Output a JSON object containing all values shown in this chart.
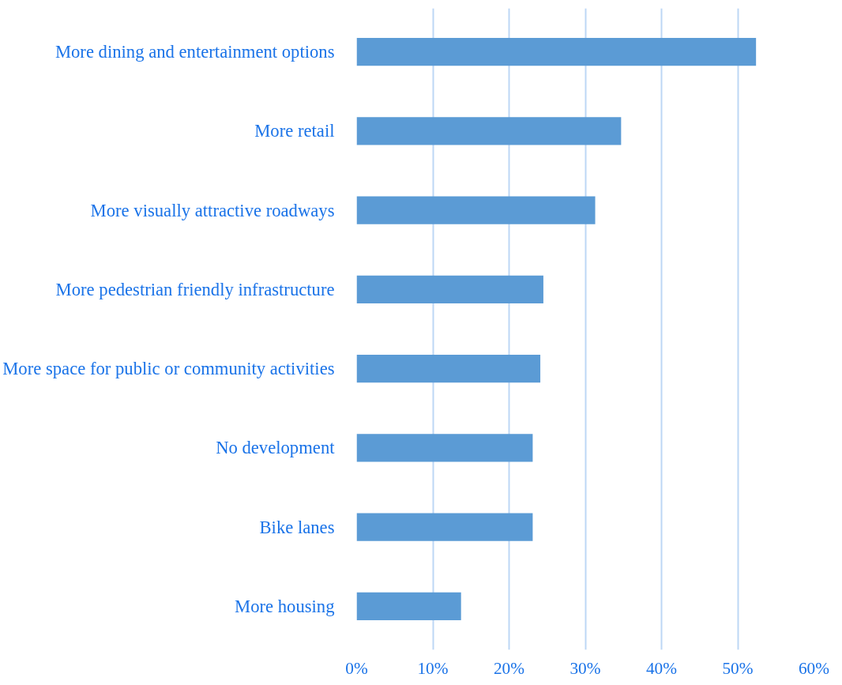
{
  "chart_data": {
    "type": "bar",
    "orientation": "horizontal",
    "categories": [
      "More dining and entertainment options",
      "More retail",
      "More visually attractive roadways",
      "More pedestrian friendly infrastructure",
      "More space for public or community activities",
      "No development",
      "Bike lanes",
      "More housing"
    ],
    "values": [
      52.4,
      34.7,
      31.3,
      24.5,
      24.1,
      23.1,
      23.1,
      13.7
    ],
    "color": "#5b9bd5",
    "xlim": [
      0,
      60
    ],
    "xticks": [
      {
        "value": 0,
        "label": "0%"
      },
      {
        "value": 10,
        "label": "10%"
      },
      {
        "value": 20,
        "label": "20%"
      },
      {
        "value": 30,
        "label": "30%"
      },
      {
        "value": 40,
        "label": "40%"
      },
      {
        "value": 50,
        "label": "50%"
      },
      {
        "value": 60,
        "label": "60%"
      }
    ],
    "grid": "x"
  }
}
